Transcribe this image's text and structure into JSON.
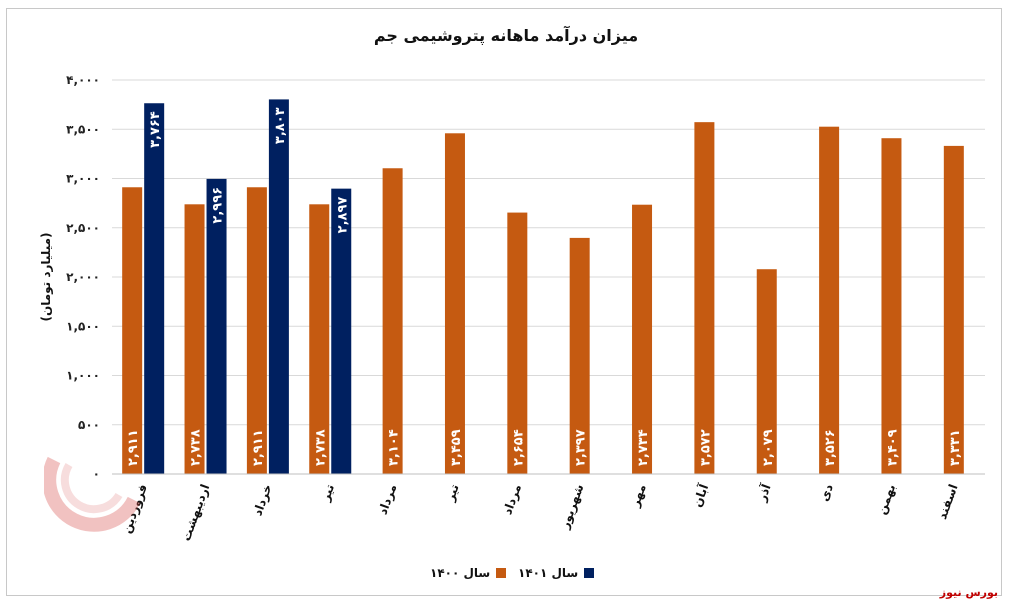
{
  "chart_data": {
    "type": "bar",
    "title": "میزان درآمد ماهانه پتروشیمی جم",
    "ylabel": "(میلیارد تومان)",
    "ylim": [
      0,
      4000
    ],
    "ytick_values": [
      0,
      500,
      1000,
      1500,
      2000,
      2500,
      3000,
      3500,
      4000
    ],
    "ytick_labels": [
      "۰",
      "۵۰۰",
      "۱,۰۰۰",
      "۱,۵۰۰",
      "۲,۰۰۰",
      "۲,۵۰۰",
      "۳,۰۰۰",
      "۳,۵۰۰",
      "۴,۰۰۰"
    ],
    "grid": true,
    "legend_position": "bottom",
    "categories": [
      "فروردین",
      "اردیبهشت",
      "خرداد",
      "تیر",
      "مرداد",
      "تیر",
      "مرداد",
      "شهریور",
      "مهر",
      "آبان",
      "آذر",
      "دی",
      "بهمن",
      "اسفند"
    ],
    "series": [
      {
        "name": "سال ۱۴۰۰",
        "color": "#c55a11",
        "values": [
          2911,
          2738,
          2911,
          2738,
          3104,
          3459,
          2654,
          2397,
          2734,
          3572,
          2079,
          3526,
          3409,
          3331
        ],
        "labels": [
          "۲,۹۱۱",
          "۲,۷۳۸",
          "۲,۹۱۱",
          "۲,۷۳۸",
          "۳,۱۰۴",
          "۳,۴۵۹",
          "۲,۶۵۴",
          "۲,۳۹۷",
          "۲,۷۳۴",
          "۳,۵۷۲",
          "۲,۰۷۹",
          "۳,۵۲۶",
          "۳,۴۰۹",
          "۳,۳۳۱"
        ]
      },
      {
        "name": "سال ۱۴۰۱",
        "color": "#002060",
        "values": [
          3764,
          2996,
          3803,
          2897,
          null,
          null,
          null,
          null,
          null,
          null,
          null,
          null,
          null,
          null
        ],
        "labels": [
          "۳,۷۶۴",
          "۲,۹۹۶",
          "۳,۸۰۳",
          "۲,۸۹۷",
          "",
          "",
          "",
          "",
          "",
          "",
          "",
          "",
          "",
          ""
        ]
      }
    ]
  },
  "legend": [
    {
      "label": "سال ۱۴۰۱",
      "color": "#002060"
    },
    {
      "label": "سال ۱۴۰۰",
      "color": "#c55a11"
    }
  ],
  "source": "بورس نیوز"
}
